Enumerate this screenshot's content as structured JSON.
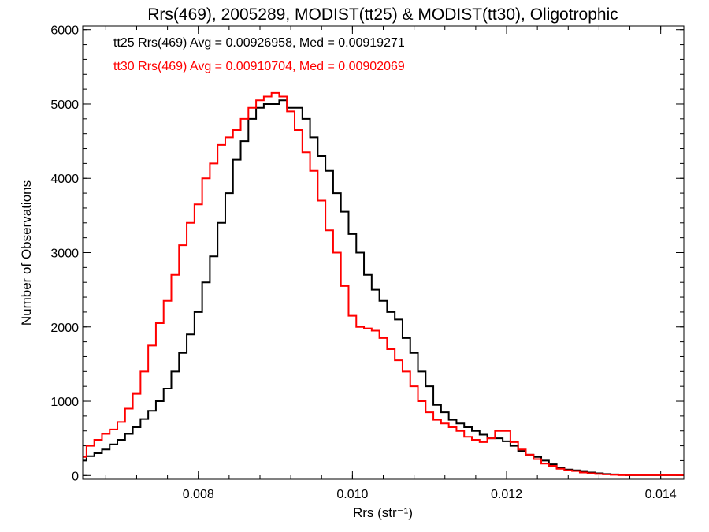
{
  "chart_data": {
    "type": "line",
    "style": "histogram-step",
    "title": "Rrs(469), 2005289, MODIST(tt25) & MODIST(tt30), Oligotrophic",
    "xlabel": "Rrs (str⁻¹)",
    "ylabel": "Number of Observations",
    "xlim": [
      0.0065,
      0.0143
    ],
    "ylim": [
      -50,
      6050
    ],
    "x_ticks": [
      0.008,
      0.01,
      0.012,
      0.014
    ],
    "x_tick_labels": [
      "0.008",
      "0.010",
      "0.012",
      "0.014"
    ],
    "y_ticks": [
      0,
      1000,
      2000,
      3000,
      4000,
      5000,
      6000
    ],
    "y_tick_labels": [
      "0",
      "1000",
      "2000",
      "3000",
      "4000",
      "5000",
      "6000"
    ],
    "grid": false,
    "annotations": [
      {
        "text": "tt25 Rrs(469) Avg = 0.00926958, Med = 0.00919271",
        "color": "#000000"
      },
      {
        "text": "tt30 Rrs(469) Avg = 0.00910704, Med = 0.00902069",
        "color": "#ff0000"
      }
    ],
    "series": [
      {
        "color": "#000000",
        "x": [
          0.0065,
          0.0066,
          0.0067,
          0.0068,
          0.0069,
          0.007,
          0.0071,
          0.0072,
          0.0073,
          0.0074,
          0.0075,
          0.0076,
          0.0077,
          0.0078,
          0.0079,
          0.008,
          0.0081,
          0.0082,
          0.0083,
          0.0084,
          0.0085,
          0.0086,
          0.0087,
          0.0088,
          0.0089,
          0.009,
          0.0091,
          0.0092,
          0.0093,
          0.0094,
          0.0095,
          0.0096,
          0.0097,
          0.0098,
          0.0099,
          0.01,
          0.0101,
          0.0102,
          0.0103,
          0.0104,
          0.0105,
          0.0106,
          0.0107,
          0.0108,
          0.0109,
          0.011,
          0.0111,
          0.0112,
          0.0113,
          0.0114,
          0.0115,
          0.0116,
          0.0117,
          0.0118,
          0.0119,
          0.012,
          0.0121,
          0.0122,
          0.0123,
          0.0124,
          0.0125,
          0.0126,
          0.0127,
          0.0128,
          0.0129,
          0.013,
          0.0131,
          0.0132,
          0.0133,
          0.0134,
          0.0135,
          0.0136,
          0.0137,
          0.0138,
          0.0139,
          0.014,
          0.0141,
          0.0142,
          0.0143
        ],
        "values": [
          200,
          260,
          300,
          350,
          420,
          480,
          560,
          650,
          760,
          870,
          1000,
          1170,
          1400,
          1650,
          1900,
          2200,
          2600,
          2950,
          3400,
          3800,
          4250,
          4500,
          4800,
          4950,
          5000,
          5000,
          5050,
          4950,
          4950,
          4800,
          4550,
          4300,
          4100,
          3800,
          3550,
          3250,
          3000,
          2700,
          2500,
          2350,
          2200,
          2100,
          1850,
          1650,
          1400,
          1200,
          950,
          850,
          750,
          700,
          650,
          600,
          550,
          500,
          500,
          460,
          400,
          330,
          280,
          250,
          200,
          150,
          100,
          80,
          70,
          60,
          40,
          30,
          20,
          15,
          10,
          5,
          5,
          5,
          5,
          5,
          5,
          5,
          5
        ]
      },
      {
        "color": "#ff0000",
        "x": [
          0.0065,
          0.0066,
          0.0067,
          0.0068,
          0.0069,
          0.007,
          0.0071,
          0.0072,
          0.0073,
          0.0074,
          0.0075,
          0.0076,
          0.0077,
          0.0078,
          0.0079,
          0.008,
          0.0081,
          0.0082,
          0.0083,
          0.0084,
          0.0085,
          0.0086,
          0.0087,
          0.0088,
          0.0089,
          0.009,
          0.0091,
          0.0092,
          0.0093,
          0.0094,
          0.0095,
          0.0096,
          0.0097,
          0.0098,
          0.0099,
          0.01,
          0.0101,
          0.0102,
          0.0103,
          0.0104,
          0.0105,
          0.0106,
          0.0107,
          0.0108,
          0.0109,
          0.011,
          0.0111,
          0.0112,
          0.0113,
          0.0114,
          0.0115,
          0.0116,
          0.0117,
          0.0118,
          0.0119,
          0.012,
          0.0121,
          0.0122,
          0.0123,
          0.0124,
          0.0125,
          0.0126,
          0.0127,
          0.0128,
          0.0129,
          0.013,
          0.0131,
          0.0132,
          0.0133,
          0.0134,
          0.0135,
          0.0136,
          0.0137,
          0.0138,
          0.0139,
          0.014,
          0.0141,
          0.0142,
          0.0143
        ],
        "values": [
          250,
          400,
          480,
          560,
          620,
          720,
          900,
          1100,
          1400,
          1750,
          2050,
          2350,
          2700,
          3100,
          3400,
          3650,
          4000,
          4200,
          4450,
          4550,
          4650,
          4800,
          4950,
          5050,
          5100,
          5150,
          5100,
          4900,
          4650,
          4350,
          4100,
          3700,
          3300,
          3000,
          2550,
          2150,
          2000,
          1980,
          1950,
          1850,
          1700,
          1550,
          1400,
          1200,
          1000,
          850,
          750,
          700,
          650,
          600,
          520,
          480,
          450,
          500,
          600,
          600,
          450,
          350,
          280,
          220,
          160,
          130,
          90,
          70,
          60,
          40,
          30,
          20,
          15,
          10,
          5,
          5,
          5,
          5,
          5,
          5,
          5,
          5,
          5
        ]
      }
    ]
  }
}
